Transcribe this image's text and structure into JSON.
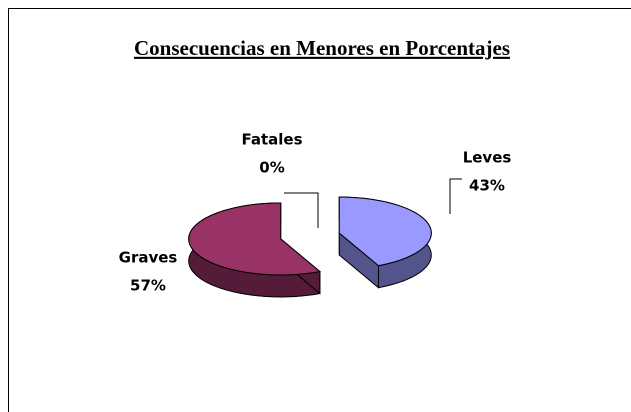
{
  "chart_data": {
    "type": "pie",
    "title": "Consecuencias en Menores en Porcentajes",
    "categories": [
      "Leves",
      "Graves",
      "Fatales"
    ],
    "values": [
      43,
      57,
      0
    ],
    "value_labels": [
      "43%",
      "57%",
      "0%"
    ],
    "colors": [
      "#9999ff",
      "#993366",
      "#ffffcc"
    ]
  }
}
